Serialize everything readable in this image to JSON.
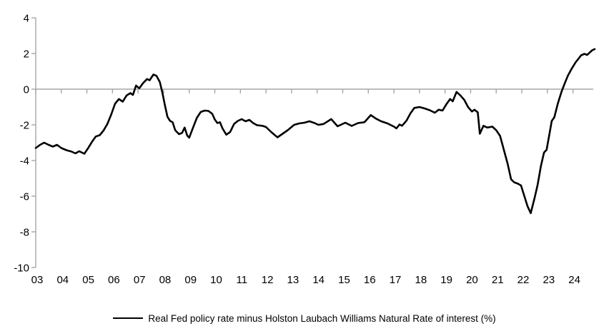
{
  "chart_data": {
    "type": "line",
    "title": "",
    "xlabel": "",
    "ylabel": "",
    "ylim": [
      -10,
      4
    ],
    "xlim": [
      2003,
      2024.85
    ],
    "grid": "zero-line-only",
    "legend_position": "bottom-center",
    "axis_color": "#a6a6a6",
    "text_color": "#000000",
    "y_ticks": [
      4,
      2,
      0,
      -2,
      -4,
      -6,
      -8,
      -10
    ],
    "x_ticks": {
      "years": [
        2003,
        2004,
        2005,
        2006,
        2007,
        2008,
        2009,
        2010,
        2011,
        2012,
        2013,
        2014,
        2015,
        2016,
        2017,
        2018,
        2019,
        2020,
        2021,
        2022,
        2023,
        2024
      ],
      "labels": [
        "03",
        "04",
        "05",
        "06",
        "07",
        "08",
        "09",
        "10",
        "11",
        "12",
        "13",
        "14",
        "15",
        "16",
        "17",
        "18",
        "19",
        "20",
        "21",
        "22",
        "23",
        "24"
      ]
    },
    "series": [
      {
        "name": "Real Fed policy rate minus Holston Laubach Williams Natural Rate of interest (%)",
        "color": "#000000",
        "x": [
          2003.0,
          2003.17,
          2003.33,
          2003.5,
          2003.67,
          2003.83,
          2004.0,
          2004.2,
          2004.4,
          2004.55,
          2004.7,
          2004.9,
          2005.05,
          2005.2,
          2005.35,
          2005.5,
          2005.65,
          2005.8,
          2005.95,
          2006.1,
          2006.25,
          2006.4,
          2006.55,
          2006.7,
          2006.8,
          2006.92,
          2007.05,
          2007.2,
          2007.35,
          2007.45,
          2007.6,
          2007.72,
          2007.85,
          2007.95,
          2008.05,
          2008.15,
          2008.25,
          2008.35,
          2008.45,
          2008.6,
          2008.72,
          2008.82,
          2008.92,
          2009.0,
          2009.15,
          2009.3,
          2009.45,
          2009.6,
          2009.75,
          2009.9,
          2010.0,
          2010.1,
          2010.2,
          2010.3,
          2010.45,
          2010.6,
          2010.75,
          2010.9,
          2011.05,
          2011.2,
          2011.35,
          2011.5,
          2011.65,
          2011.85,
          2012.0,
          2012.2,
          2012.45,
          2012.65,
          2012.85,
          2013.1,
          2013.3,
          2013.5,
          2013.7,
          2013.9,
          2014.05,
          2014.25,
          2014.55,
          2014.8,
          2015.1,
          2015.35,
          2015.6,
          2015.85,
          2016.1,
          2016.3,
          2016.5,
          2016.75,
          2017.0,
          2017.1,
          2017.22,
          2017.32,
          2017.5,
          2017.65,
          2017.8,
          2018.0,
          2018.2,
          2018.4,
          2018.6,
          2018.75,
          2018.9,
          2019.05,
          2019.2,
          2019.3,
          2019.45,
          2019.6,
          2019.75,
          2019.9,
          2020.05,
          2020.15,
          2020.28,
          2020.36,
          2020.5,
          2020.65,
          2020.85,
          2021.0,
          2021.15,
          2021.3,
          2021.45,
          2021.58,
          2021.7,
          2021.85,
          2021.97,
          2022.1,
          2022.22,
          2022.35,
          2022.5,
          2022.62,
          2022.75,
          2022.87,
          2022.97,
          2023.07,
          2023.17,
          2023.27,
          2023.4,
          2023.55,
          2023.67,
          2023.8,
          2023.95,
          2024.1,
          2024.22,
          2024.32,
          2024.45,
          2024.55,
          2024.65,
          2024.75,
          2024.85
        ],
        "values": [
          -3.3,
          -3.12,
          -3.0,
          -3.12,
          -3.22,
          -3.12,
          -3.3,
          -3.42,
          -3.5,
          -3.6,
          -3.48,
          -3.62,
          -3.3,
          -2.95,
          -2.65,
          -2.58,
          -2.32,
          -1.95,
          -1.42,
          -0.82,
          -0.55,
          -0.7,
          -0.35,
          -0.22,
          -0.32,
          0.2,
          0.05,
          0.35,
          0.57,
          0.5,
          0.82,
          0.75,
          0.4,
          -0.2,
          -0.9,
          -1.55,
          -1.78,
          -1.85,
          -2.3,
          -2.52,
          -2.45,
          -2.15,
          -2.6,
          -2.72,
          -2.15,
          -1.6,
          -1.28,
          -1.2,
          -1.22,
          -1.38,
          -1.7,
          -1.9,
          -1.85,
          -2.2,
          -2.55,
          -2.4,
          -1.95,
          -1.78,
          -1.68,
          -1.8,
          -1.72,
          -1.9,
          -2.02,
          -2.05,
          -2.12,
          -2.4,
          -2.7,
          -2.5,
          -2.3,
          -2.0,
          -1.92,
          -1.88,
          -1.8,
          -1.9,
          -2.0,
          -1.95,
          -1.68,
          -2.08,
          -1.88,
          -2.06,
          -1.9,
          -1.85,
          -1.45,
          -1.65,
          -1.8,
          -1.92,
          -2.1,
          -2.2,
          -1.98,
          -2.05,
          -1.75,
          -1.35,
          -1.05,
          -1.0,
          -1.08,
          -1.18,
          -1.32,
          -1.15,
          -1.2,
          -0.85,
          -0.55,
          -0.68,
          -0.15,
          -0.35,
          -0.6,
          -1.0,
          -1.25,
          -1.15,
          -1.3,
          -2.5,
          -2.05,
          -2.15,
          -2.1,
          -2.3,
          -2.62,
          -3.4,
          -4.2,
          -5.05,
          -5.22,
          -5.3,
          -5.4,
          -6.0,
          -6.55,
          -6.95,
          -6.1,
          -5.35,
          -4.3,
          -3.55,
          -3.4,
          -2.6,
          -1.78,
          -1.58,
          -0.85,
          -0.15,
          0.3,
          0.75,
          1.15,
          1.5,
          1.72,
          1.9,
          1.98,
          1.92,
          2.05,
          2.18,
          2.25
        ]
      }
    ]
  },
  "legend": {
    "label": "Real Fed policy rate minus Holston Laubach Williams Natural Rate of interest (%)"
  }
}
